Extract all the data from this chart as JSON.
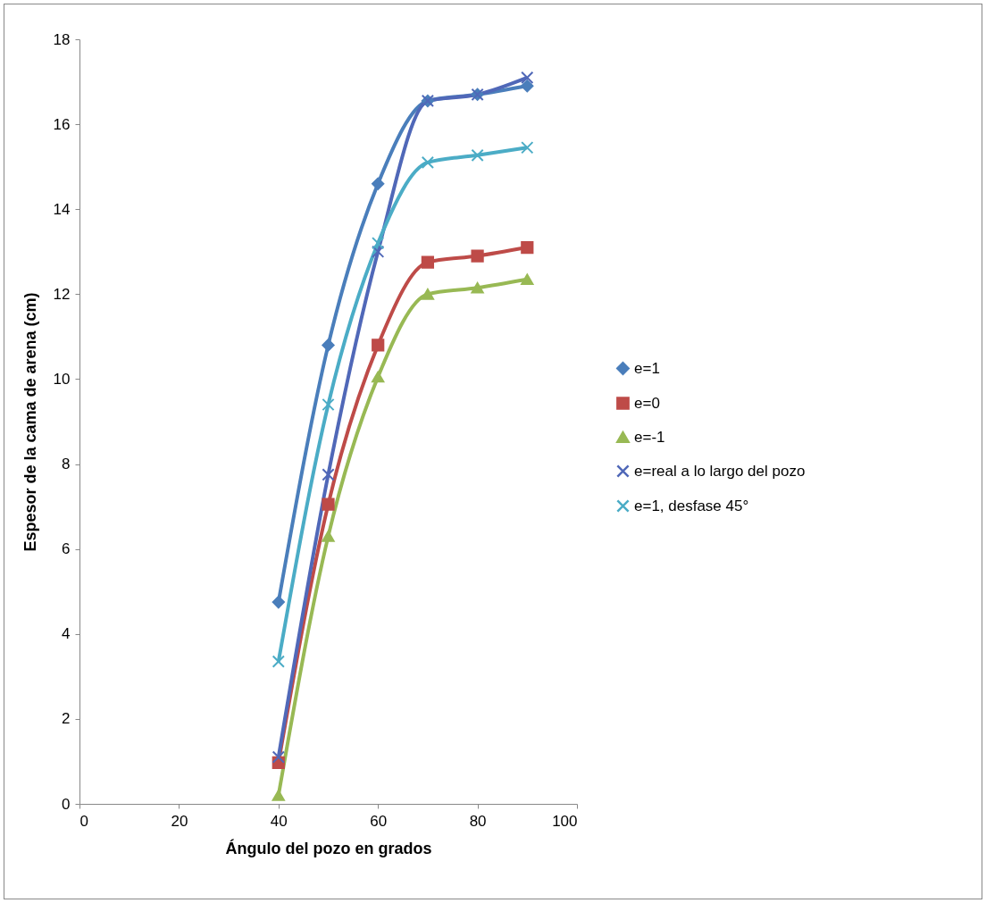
{
  "chart_data": {
    "type": "line",
    "xlabel": "Ángulo del pozo en grados",
    "ylabel": "Espesor de la cama de arena  (cm)",
    "x": [
      40,
      50,
      60,
      70,
      80,
      90
    ],
    "xlim": [
      0,
      100
    ],
    "xticks": [
      0,
      20,
      40,
      60,
      80,
      100
    ],
    "ylim": [
      0,
      18
    ],
    "yticks": [
      0,
      2,
      4,
      6,
      8,
      10,
      12,
      14,
      16,
      18
    ],
    "grid": false,
    "legend": "right",
    "line_style": "solid",
    "series": [
      {
        "name": "e=1",
        "color": "#4a7ebb",
        "marker": "diamond",
        "values": [
          4.75,
          10.8,
          14.6,
          16.55,
          16.7,
          16.9
        ]
      },
      {
        "name": "e=0",
        "color": "#be4b48",
        "marker": "square",
        "values": [
          0.97,
          7.05,
          10.8,
          12.75,
          12.9,
          13.1
        ]
      },
      {
        "name": "e=-1",
        "color": "#98b954",
        "marker": "triangle",
        "values": [
          0.2,
          6.3,
          10.05,
          12.0,
          12.15,
          12.35
        ]
      },
      {
        "name": "e=real a lo largo del pozo",
        "color": "#5068b8",
        "marker": "cross",
        "values": [
          1.1,
          7.75,
          13.0,
          16.55,
          16.7,
          17.1
        ]
      },
      {
        "name": "e=1, desfase 45°",
        "color": "#4bacc6",
        "marker": "cross",
        "values": [
          3.35,
          9.4,
          13.2,
          15.1,
          15.27,
          15.45
        ]
      }
    ]
  }
}
